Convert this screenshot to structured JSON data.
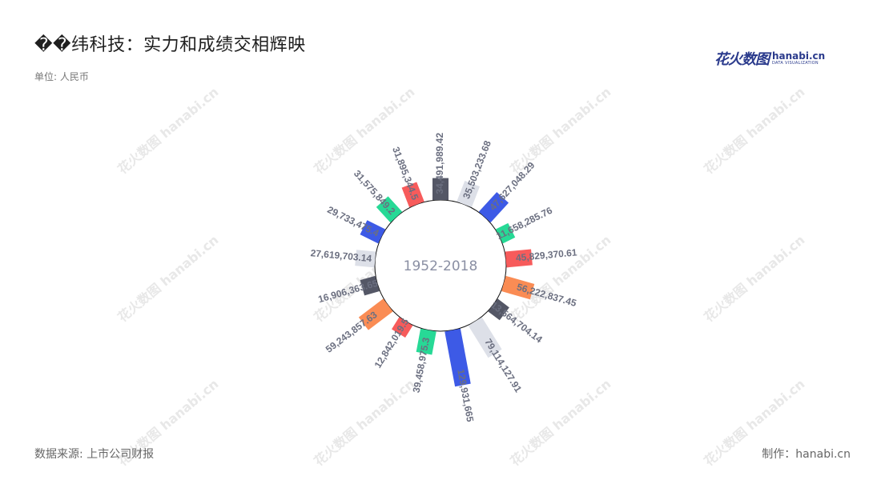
{
  "header": {
    "title": "��纬科技：实力和成绩交相辉映",
    "unit_label": "单位: 人民币"
  },
  "logo": {
    "cn": "花火数图",
    "en": "hanabi.cn",
    "sub": "DATA VISUALIZATION"
  },
  "footer": {
    "source": "数据来源: 上市公司财报",
    "credit": "制作：hanabi.cn"
  },
  "watermark": "花火数图 hanabi.cn",
  "colors": {
    "palette": [
      "#545766",
      "#dde0e8",
      "#3d5ae6",
      "#27d996",
      "#f75b5b",
      "#fa8c54"
    ],
    "center_text": "#8a8fa3",
    "label_text": "#6b6f80"
  },
  "chart_data": {
    "type": "bar",
    "layout": "radial",
    "center_label": "1952-2018",
    "values": [
      34491989.42,
      35503233.68,
      47627048.29,
      11658285.76,
      45829370.61,
      56222837.45,
      13564704.14,
      79114127.91,
      129931665,
      39458975.3,
      12842019.5,
      59243857.6,
      16906363.6,
      27619703.14,
      29733475.4,
      31575849.2,
      31895344.5
    ],
    "labels": [
      "34,491,989.42",
      "35,503,233.68",
      "47,627,048.29",
      "11,658,285.76",
      "45,829,370.61",
      "56,222,837.45",
      "13,564,704.14",
      "79,114,127.91",
      "129,931,665",
      "39,458,975.3",
      "12,842,019.5",
      "59,243,857.63",
      "16,906,363.65",
      "27,619,703.14",
      "29,733,475.4",
      "31,575,849.2",
      "31,895,344.5"
    ],
    "bar_color_cycle": [
      "#545766",
      "#dde0e8",
      "#3d5ae6",
      "#27d996",
      "#f75b5b",
      "#fa8c54"
    ],
    "grid": false,
    "legend": "none"
  }
}
